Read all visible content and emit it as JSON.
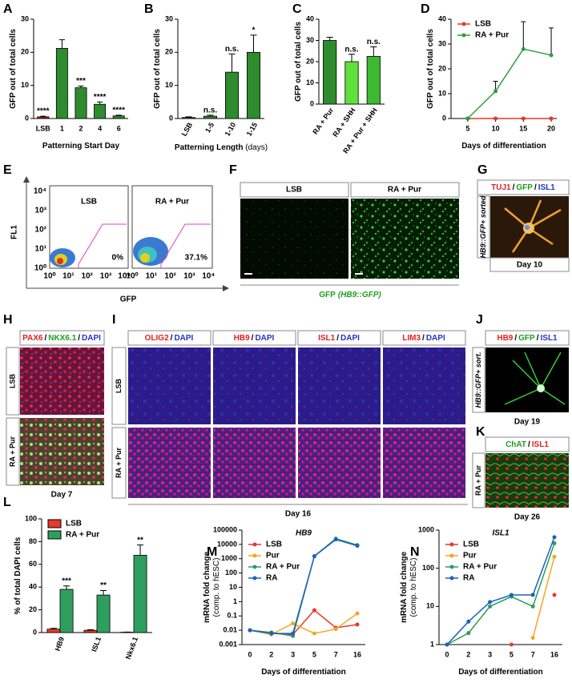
{
  "chart_data": [
    {
      "type": "bar",
      "panel": "A",
      "ylabel": "GFP out of total cells",
      "xlabel": "Patterning Start Day",
      "categories": [
        "LSB",
        "1",
        "2",
        "4",
        "6"
      ],
      "values": [
        0.5,
        21.2,
        9.3,
        4.3,
        0.8
      ],
      "errors": [
        0.2,
        2.6,
        0.5,
        0.7,
        0.2
      ],
      "annotations": [
        "****",
        null,
        "***",
        "****",
        "****"
      ],
      "colors": [
        "#b22222",
        "#2e8b2e",
        "#2e8b2e",
        "#2e8b2e",
        "#2e8b2e"
      ],
      "ylim": [
        0,
        30
      ],
      "yticks": [
        0,
        10,
        20,
        30
      ]
    },
    {
      "type": "bar",
      "panel": "B",
      "ylabel": "GFP out of total cells",
      "xlabel": "Patterning Length",
      "xlabel_unit": "(days)",
      "categories": [
        "LSB",
        "1-5",
        "1-10",
        "1-15"
      ],
      "values": [
        0.3,
        0.7,
        14,
        20
      ],
      "errors": [
        0.2,
        0.3,
        5.5,
        5.2
      ],
      "annotations": [
        null,
        "n.s.",
        "n.s.",
        "*"
      ],
      "colors": [
        "#b22222",
        "#2e8b2e",
        "#2e8b2e",
        "#2e8b2e"
      ],
      "ylim": [
        0,
        30
      ],
      "yticks": [
        0,
        10,
        20,
        30
      ]
    },
    {
      "type": "bar",
      "panel": "C",
      "ylabel": "GFP out of total cells",
      "categories": [
        "RA + Pur",
        "RA + SHH",
        "RA + Pur + SHH"
      ],
      "values": [
        30,
        20,
        22.5
      ],
      "errors": [
        1.5,
        3.5,
        4.5
      ],
      "annotations": [
        null,
        "n.s.",
        "n.s."
      ],
      "colors": [
        "#2e8b2e",
        "#5fe03a",
        "#3fb832"
      ],
      "ylim": [
        0,
        40
      ],
      "yticks": [
        0,
        10,
        20,
        30,
        40
      ]
    },
    {
      "type": "line",
      "panel": "D",
      "ylabel": "GFP out of total cells",
      "xlabel": "Days of differentiation",
      "x": [
        5,
        10,
        15,
        20
      ],
      "xlim": [
        2,
        21
      ],
      "xticks": [
        5,
        10,
        15,
        20
      ],
      "legend": "top-left",
      "series": [
        {
          "name": "LSB",
          "color": "#e8392a",
          "values": [
            0,
            0,
            0,
            0
          ],
          "errors": [
            0,
            0,
            0,
            0
          ]
        },
        {
          "name": "RA + Pur",
          "color": "#2e9e3e",
          "values": [
            0,
            11,
            28,
            25.5
          ],
          "errors": [
            0,
            4,
            11,
            11
          ]
        }
      ],
      "ylim": [
        0,
        40
      ],
      "yticks": [
        0,
        10,
        20,
        30,
        40
      ]
    },
    {
      "type": "bar",
      "panel": "L",
      "ylabel": "% of total DAPI cells",
      "categories": [
        "HB9",
        "ISL1",
        "Nkx6.1"
      ],
      "legend": "top-left",
      "series": [
        {
          "name": "LSB",
          "color": "#e8392a",
          "values": [
            3,
            2,
            0.3
          ],
          "errors": [
            0.7,
            0.5,
            0.1
          ]
        },
        {
          "name": "RA + Pur",
          "color": "#2e9e5e",
          "values": [
            38,
            33,
            68
          ],
          "errors": [
            3,
            4,
            9
          ],
          "annotations": [
            "***",
            "**",
            "**"
          ]
        }
      ],
      "ylim": [
        0,
        100
      ],
      "yticks": [
        0,
        20,
        40,
        60,
        80,
        100
      ]
    },
    {
      "type": "line",
      "panel": "M",
      "title": "HB9",
      "ylabel": "mRNA fold change",
      "ylabel_sub": "(comp. to hESC)",
      "xlabel": "Days of differentiation",
      "categories": [
        "0",
        "2",
        "3",
        "5",
        "7",
        "16"
      ],
      "log_scale": true,
      "legend": "top-left",
      "series": [
        {
          "name": "LSB",
          "color": "#e8392a",
          "values": [
            0.01,
            0.006,
            0.005,
            0.25,
            0.015,
            0.025
          ]
        },
        {
          "name": "Pur",
          "color": "#f5a623",
          "values": [
            0.01,
            0.005,
            0.03,
            0.006,
            0.012,
            0.15
          ]
        },
        {
          "name": "RA + Pur",
          "color": "#2a9d5c",
          "values": [
            0.01,
            0.007,
            0.004,
            1500,
            25000,
            9000
          ]
        },
        {
          "name": "RA",
          "color": "#1f5fbf",
          "values": [
            0.01,
            0.006,
            0.006,
            1500,
            22000,
            8000
          ]
        }
      ],
      "ylim": [
        0.001,
        100000
      ],
      "yticks": [
        0.001,
        0.01,
        0.1,
        1,
        10,
        100,
        1000,
        10000,
        100000
      ]
    },
    {
      "type": "line",
      "panel": "N",
      "title": "ISL1",
      "ylabel": "mRNA fold change",
      "ylabel_sub": "(comp. to hESC)",
      "xlabel": "Days of differentiation",
      "categories": [
        "0",
        "2",
        "3",
        "5",
        "7",
        "16"
      ],
      "log_scale": true,
      "legend": "top-left",
      "series": [
        {
          "name": "LSB",
          "color": "#e8392a",
          "values": [
            null,
            null,
            null,
            1,
            null,
            20
          ]
        },
        {
          "name": "Pur",
          "color": "#f5a623",
          "values": [
            null,
            null,
            null,
            null,
            1.5,
            200
          ]
        },
        {
          "name": "RA + Pur",
          "color": "#2a9d5c",
          "values": [
            1,
            2,
            10,
            18,
            10,
            450
          ]
        },
        {
          "name": "RA",
          "color": "#1f5fbf",
          "values": [
            1,
            4,
            13,
            20,
            20,
            650
          ]
        }
      ],
      "ylim": [
        1,
        1000
      ],
      "yticks": [
        1,
        10,
        100,
        1000
      ]
    }
  ],
  "panels": {
    "separator": "/",
    "E": {
      "letter": "E",
      "y_label": "FL1",
      "x_label": "GFP",
      "tick_labels": [
        "10⁰",
        "10¹",
        "10²",
        "10³",
        "10⁴"
      ],
      "plots": [
        {
          "title": "LSB",
          "percent": "0%"
        },
        {
          "title": "RA + Pur",
          "percent": "37.1%"
        }
      ]
    },
    "F": {
      "letter": "F",
      "images": [
        "LSB",
        "RA + Pur"
      ],
      "caption": "GFP",
      "caption_italic": "(HB9::GFP)"
    },
    "G": {
      "letter": "G",
      "stains": [
        {
          "text": "TUJ1",
          "color": "#e02020"
        },
        {
          "text": "GFP",
          "color": "#1e9e1e"
        },
        {
          "text": "ISL1",
          "color": "#2233cc"
        }
      ],
      "side": "HB9::GFP+ sorted",
      "day": "Day 10"
    },
    "H": {
      "letter": "H",
      "stains": [
        {
          "text": "PAX6",
          "color": "#e02020"
        },
        {
          "text": "NKX6.1",
          "color": "#1e9e1e"
        },
        {
          "text": "DAPI",
          "color": "#2233cc"
        }
      ],
      "rows": [
        "LSB",
        "RA + Pur"
      ],
      "day": "Day 7"
    },
    "I": {
      "letter": "I",
      "columns": [
        [
          {
            "text": "OLIG2",
            "color": "#e02020"
          },
          {
            "text": "DAPI",
            "color": "#2233cc"
          }
        ],
        [
          {
            "text": "HB9",
            "color": "#e02020"
          },
          {
            "text": "DAPI",
            "color": "#2233cc"
          }
        ],
        [
          {
            "text": "ISL1",
            "color": "#e02020"
          },
          {
            "text": "DAPI",
            "color": "#2233cc"
          }
        ],
        [
          {
            "text": "LIM3",
            "color": "#e02020"
          },
          {
            "text": "DAPI",
            "color": "#2233cc"
          }
        ]
      ],
      "rows": [
        "LSB",
        "RA + Pur"
      ],
      "day": "Day 16"
    },
    "J": {
      "letter": "J",
      "stains": [
        {
          "text": "HB9",
          "color": "#e02020"
        },
        {
          "text": "GFP",
          "color": "#1e9e1e"
        },
        {
          "text": "ISL1",
          "color": "#2233cc"
        }
      ],
      "side": "HB9::GFP+ sort.",
      "day": "Day 19"
    },
    "K": {
      "letter": "K",
      "stains": [
        {
          "text": "ChAT",
          "color": "#1e9e1e"
        },
        {
          "text": "ISL1",
          "color": "#e02020"
        }
      ],
      "side": "RA + Pur",
      "day": "Day 26"
    }
  }
}
